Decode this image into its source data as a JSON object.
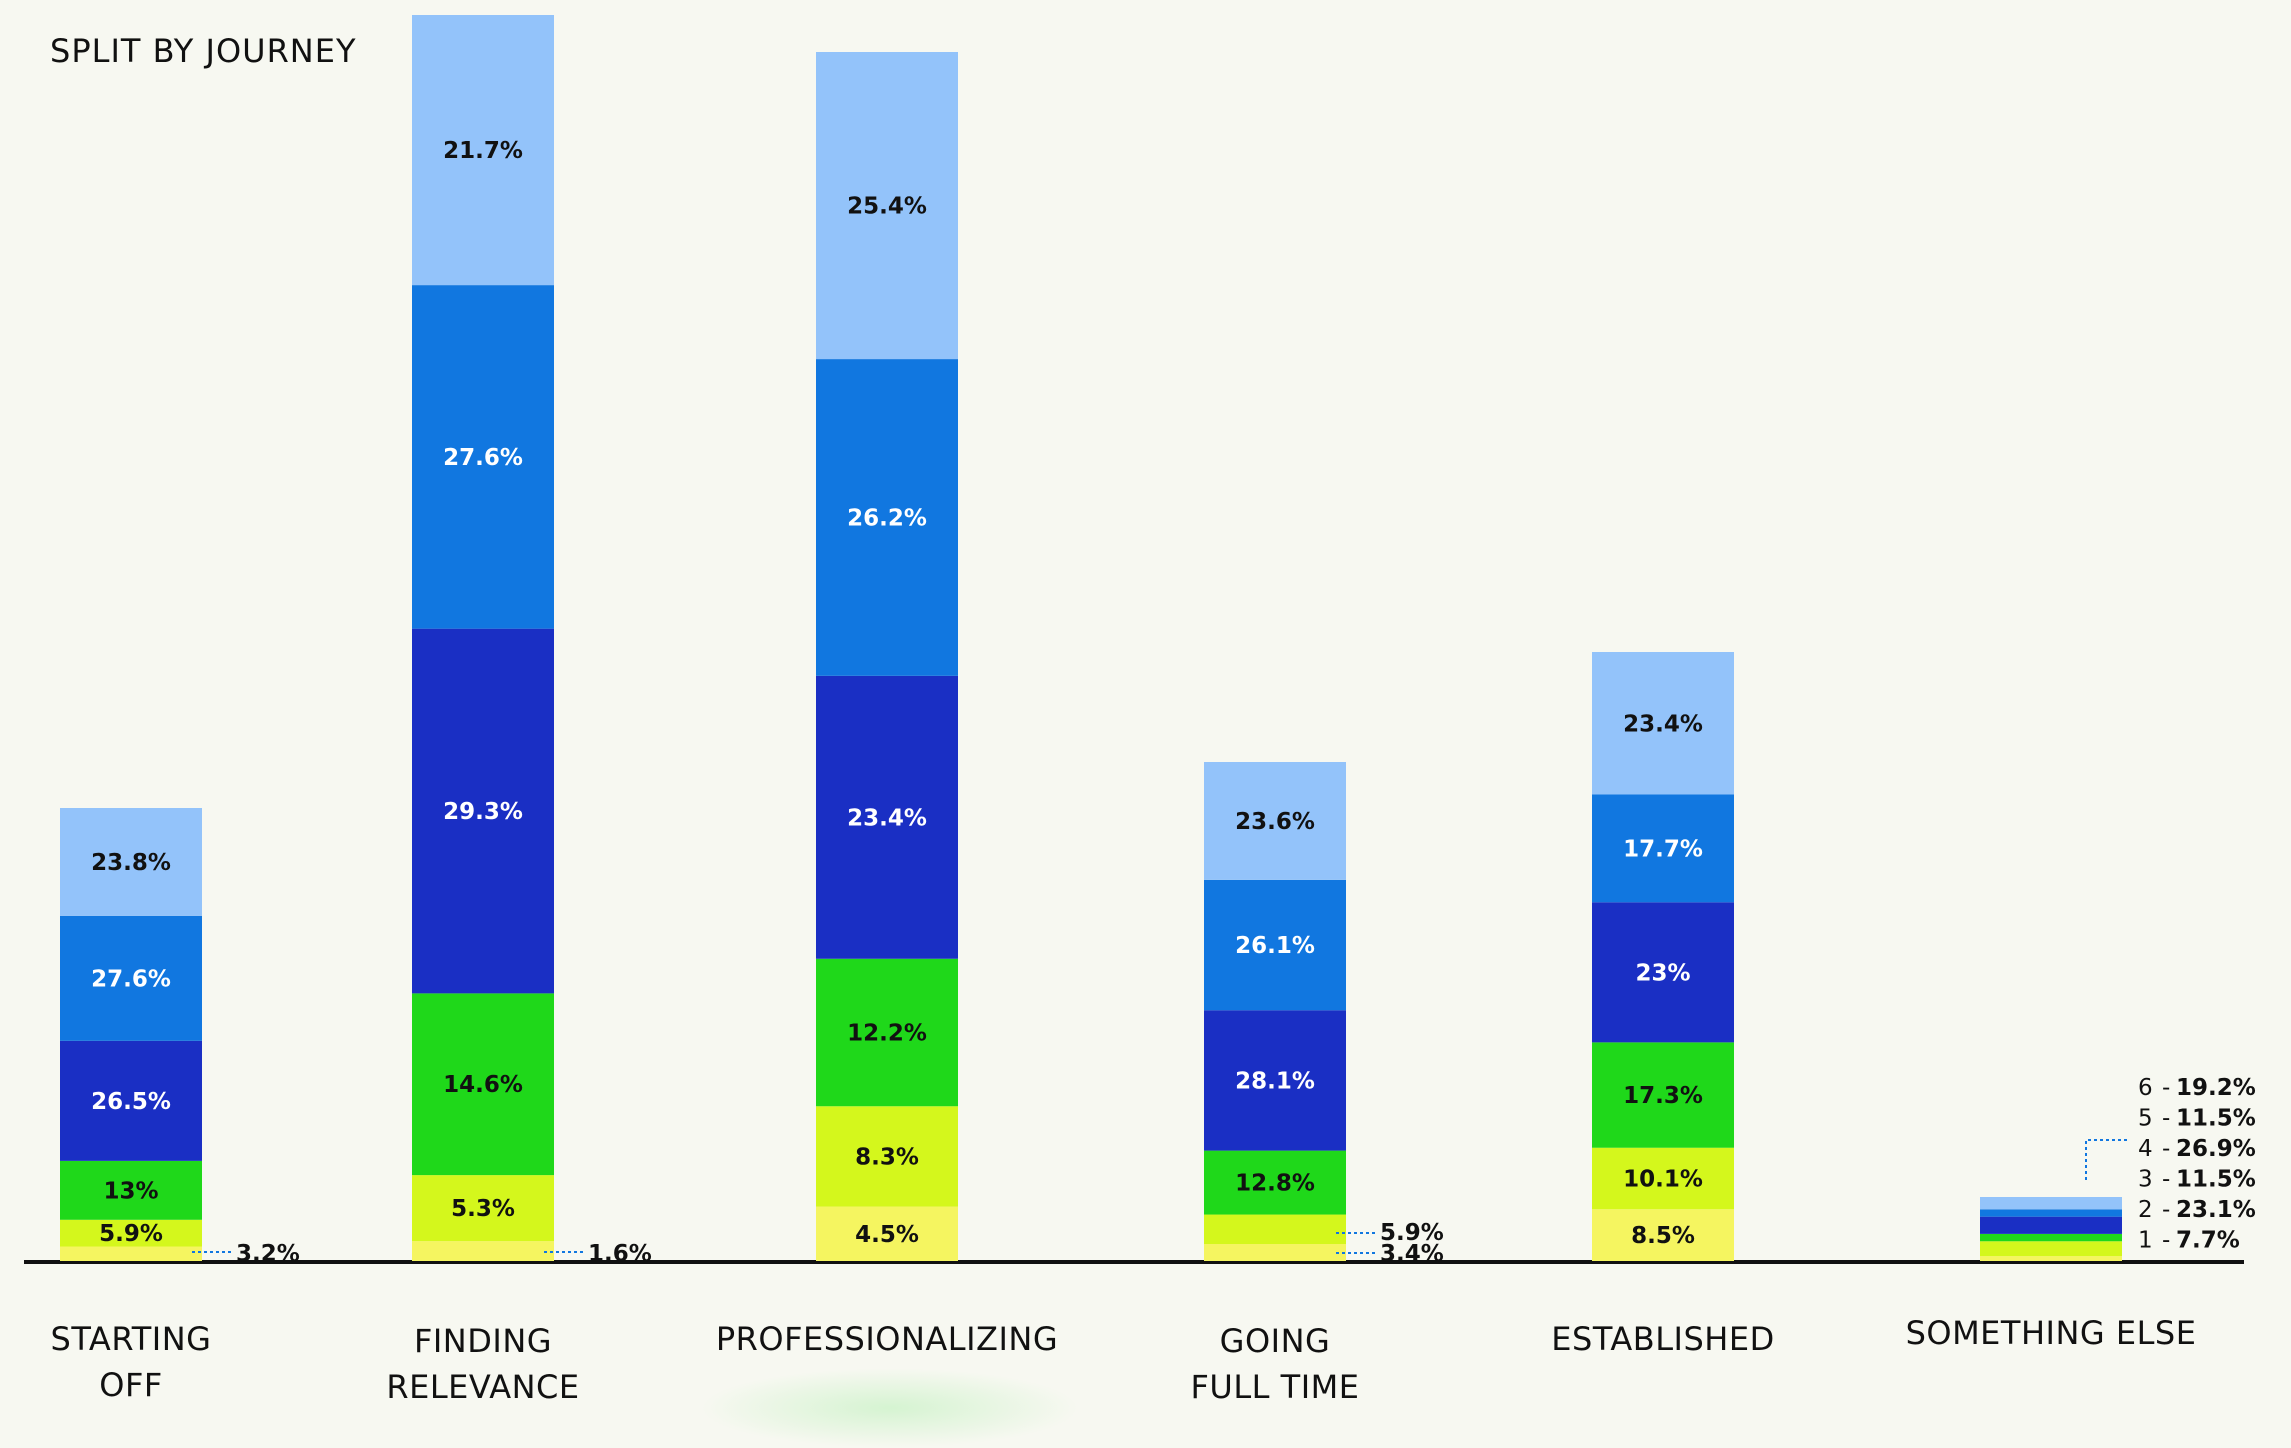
{
  "chart_data": {
    "type": "bar",
    "stacked": true,
    "title": "SPLIT BY JOURNEY",
    "categories": [
      "STARTING\nOFF",
      "FINDING\nRELEVANCE",
      "PROFESSIONALIZING",
      "GOING\nFULL TIME",
      "ESTABLISHED",
      "SOMETHING ELSE"
    ],
    "series": [
      {
        "name": "1",
        "color": "#f5f560",
        "values": [
          3.2,
          1.6,
          4.5,
          3.4,
          8.5,
          7.7
        ]
      },
      {
        "name": "2",
        "color": "#d4f71c",
        "values": [
          5.9,
          5.3,
          8.3,
          5.9,
          10.1,
          23.1
        ]
      },
      {
        "name": "3",
        "color": "#1fd81a",
        "values": [
          13,
          14.6,
          12.2,
          12.8,
          17.3,
          11.5
        ]
      },
      {
        "name": "4",
        "color": "#1a2fc4",
        "values": [
          26.5,
          29.3,
          23.4,
          28.1,
          23,
          26.9
        ]
      },
      {
        "name": "5",
        "color": "#1177e0",
        "values": [
          27.6,
          27.6,
          26.2,
          26.1,
          17.7,
          11.5
        ]
      },
      {
        "name": "6",
        "color": "#93c3fa",
        "values": [
          23.8,
          21.7,
          25.4,
          23.6,
          23.4,
          19.2
        ]
      }
    ],
    "value_labels": [
      [
        "3.2%",
        "5.9%",
        "13%",
        "26.5%",
        "27.6%",
        "23.8%"
      ],
      [
        "1.6%",
        "5.3%",
        "14.6%",
        "29.3%",
        "27.6%",
        "21.7%"
      ],
      [
        "4.5%",
        "8.3%",
        "12.2%",
        "23.4%",
        "26.2%",
        "25.4%"
      ],
      [
        "3.4%",
        "5.9%",
        "12.8%",
        "28.1%",
        "26.1%",
        "23.6%"
      ],
      [
        "8.5%",
        "10.1%",
        "17.3%",
        "23%",
        "17.7%",
        "23.4%"
      ],
      [
        "7.7%",
        "23.1%",
        "11.5%",
        "26.9%",
        "11.5%",
        "19.2%"
      ]
    ],
    "legend_items": [
      {
        "num": "6",
        "sep": "-",
        "value": "19.2%"
      },
      {
        "num": "5",
        "sep": "-",
        "value": "11.5%"
      },
      {
        "num": "4",
        "sep": "-",
        "value": "26.9%"
      },
      {
        "num": "3",
        "sep": "-",
        "value": "11.5%"
      },
      {
        "num": "2",
        "sep": "-",
        "value": "23.1%"
      },
      {
        "num": "1",
        "sep": "-",
        "value": "7.7%"
      }
    ],
    "legend_position": "right of last bar",
    "text_colors": {
      "light": "#111111",
      "dark": "#ffffff"
    },
    "axis_color": "#111111",
    "grid": false
  }
}
